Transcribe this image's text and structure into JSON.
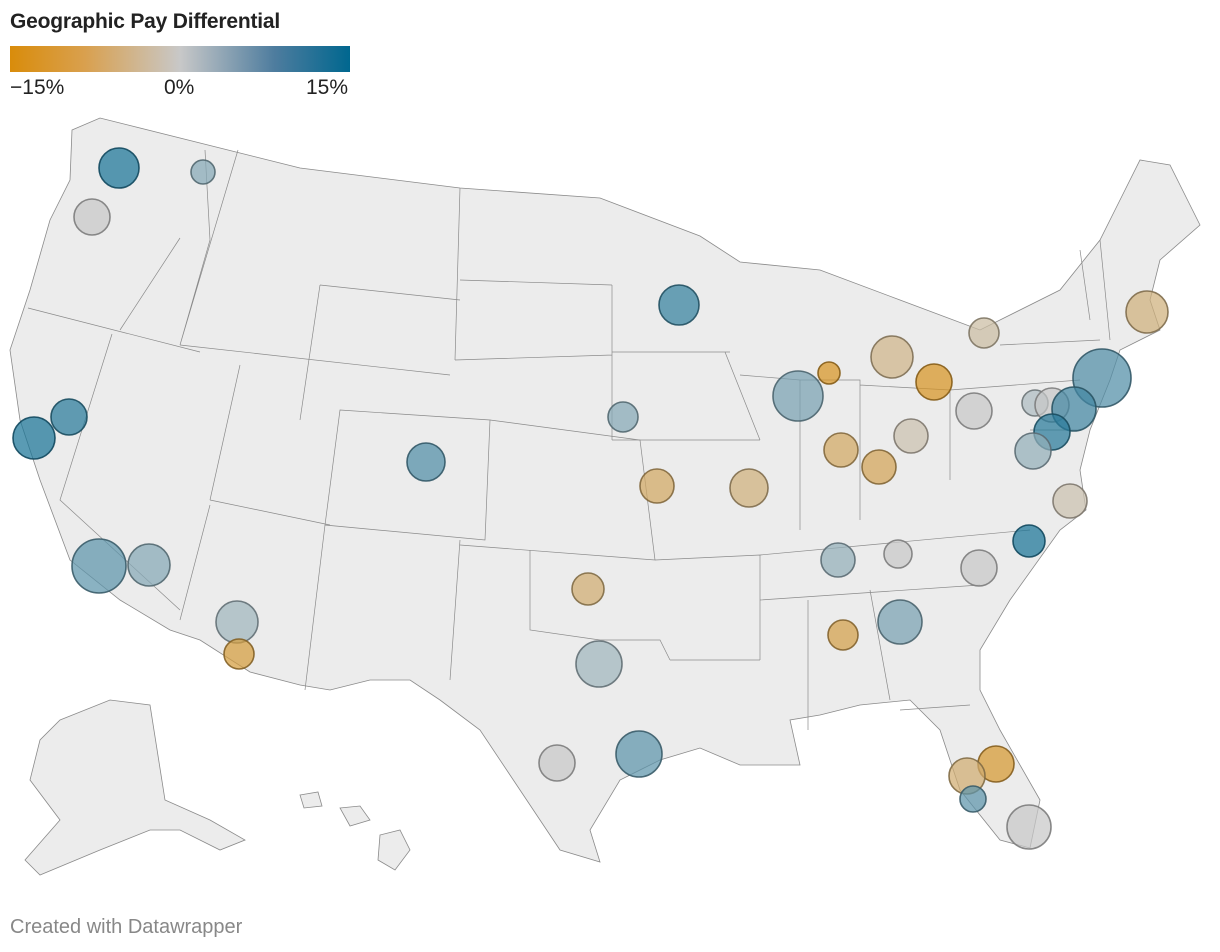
{
  "title": "Geographic Pay Differential",
  "legend": {
    "min_label": "−15%",
    "mid_label": "0%",
    "max_label": "15%",
    "colors": {
      "negative": "#d98c0b",
      "neutral": "#c8c8c8",
      "positive": "#00678f"
    }
  },
  "credit": "Created with Datawrapper",
  "map_fill": "#ececec",
  "map_stroke": "#8a8a8a",
  "markers": [
    {
      "region": "Seattle",
      "value": 13
    },
    {
      "region": "Spokane",
      "value": 5
    },
    {
      "region": "Portland",
      "value": 0
    },
    {
      "region": "Sacramento",
      "value": 12
    },
    {
      "region": "San Francisco",
      "value": 13
    },
    {
      "region": "Los Angeles",
      "value": 8
    },
    {
      "region": "Riverside",
      "value": 5
    },
    {
      "region": "Phoenix",
      "value": 3
    },
    {
      "region": "Tucson",
      "value": -11
    },
    {
      "region": "Denver",
      "value": 9
    },
    {
      "region": "Minneapolis",
      "value": 11
    },
    {
      "region": "Omaha",
      "value": 5
    },
    {
      "region": "Kansas City",
      "value": -8
    },
    {
      "region": "St. Louis",
      "value": -6
    },
    {
      "region": "Chicago",
      "value": 6
    },
    {
      "region": "Milwaukee",
      "value": -13
    },
    {
      "region": "Detroit",
      "value": -5
    },
    {
      "region": "Toledo",
      "value": -13
    },
    {
      "region": "Indianapolis",
      "value": -8
    },
    {
      "region": "Cincinnati",
      "value": -9
    },
    {
      "region": "Columbus",
      "value": -2
    },
    {
      "region": "Pittsburgh",
      "value": 0
    },
    {
      "region": "Buffalo",
      "value": -3
    },
    {
      "region": "Boston",
      "value": -6
    },
    {
      "region": "New York",
      "value": 9
    },
    {
      "region": "Harrisburg",
      "value": 2
    },
    {
      "region": "Philadelphia",
      "value": 0
    },
    {
      "region": "Newark",
      "value": 10
    },
    {
      "region": "Baltimore",
      "value": 12
    },
    {
      "region": "Washington DC",
      "value": 4
    },
    {
      "region": "Norfolk",
      "value": -2
    },
    {
      "region": "Raleigh",
      "value": 13
    },
    {
      "region": "Nashville",
      "value": 4
    },
    {
      "region": "Knoxville",
      "value": 0
    },
    {
      "region": "Charlotte",
      "value": 0
    },
    {
      "region": "Atlanta",
      "value": 6
    },
    {
      "region": "Birmingham",
      "value": -10
    },
    {
      "region": "Oklahoma City",
      "value": -7
    },
    {
      "region": "Dallas",
      "value": 3
    },
    {
      "region": "San Antonio",
      "value": 0
    },
    {
      "region": "Houston",
      "value": 8
    },
    {
      "region": "Orlando",
      "value": -12
    },
    {
      "region": "Tampa",
      "value": -7
    },
    {
      "region": "Sarasota",
      "value": 8
    },
    {
      "region": "Miami",
      "value": 0
    }
  ]
}
